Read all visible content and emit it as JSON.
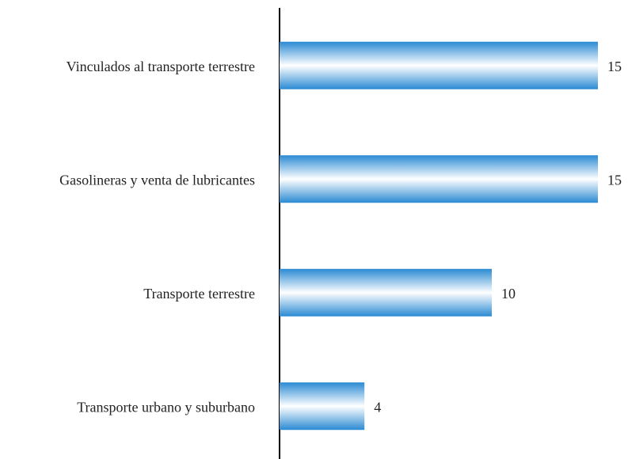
{
  "chart_data": {
    "type": "bar",
    "orientation": "horizontal",
    "categories": [
      "Vinculados al transporte terrestre",
      "Gasolineras y venta de lubricantes",
      "Transporte terrestre",
      "Transporte urbano y suburbano"
    ],
    "values": [
      15,
      15,
      10,
      4
    ],
    "color": "#2e8fd6"
  }
}
